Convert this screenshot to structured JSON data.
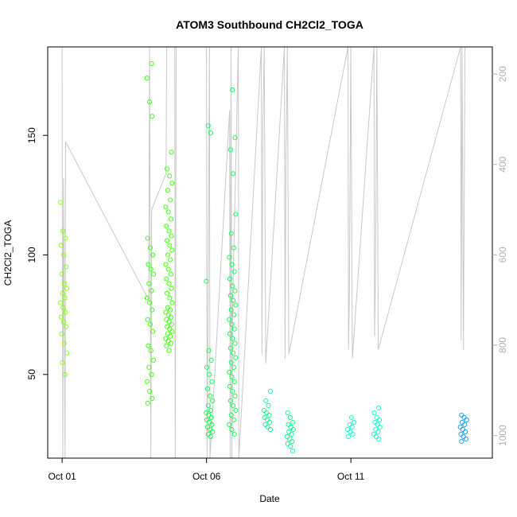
{
  "chart_data": {
    "type": "scatter",
    "title": "ATOM3 Southbound CH2Cl2_TOGA",
    "xlabel": "Date",
    "ylabel": "CH2Cl2_TOGA",
    "x_ticks": [
      {
        "label": "Oct 01",
        "value": 1
      },
      {
        "label": "Oct 06",
        "value": 6
      },
      {
        "label": "Oct 11",
        "value": 11
      }
    ],
    "xlim": [
      0.5,
      15.9
    ],
    "ylim": [
      15,
      187
    ],
    "y_ticks": [
      50,
      100,
      150
    ],
    "right_axis": {
      "label": "",
      "reversed": true,
      "ticks": [
        200,
        400,
        600,
        800,
        1000
      ],
      "lim": [
        140,
        1050
      ],
      "color": "#b0b0b0"
    },
    "series": [
      {
        "color": "#80ff00",
        "groups": [
          {
            "x": 1.05,
            "y": [
              122,
              110,
              107,
              104,
              100,
              95,
              92,
              88,
              86,
              84,
              82,
              80,
              78,
              76,
              74,
              72,
              70,
              67,
              63,
              59,
              55,
              50
            ]
          }
        ]
      },
      {
        "color": "#33ff00",
        "groups": [
          {
            "x": 4.05,
            "y": [
              180,
              174,
              164,
              158,
              107,
              103,
              100,
              96,
              94,
              92,
              88,
              85,
              82,
              80,
              77,
              73,
              71,
              68,
              62,
              60,
              56,
              53,
              50,
              47,
              43,
              40,
              38
            ]
          },
          {
            "x": 4.7,
            "y": [
              143,
              136,
              133,
              130,
              127,
              123,
              120,
              118,
              115,
              112,
              110,
              108,
              106,
              104,
              102,
              100,
              98,
              96,
              94,
              92,
              90,
              88,
              86,
              84,
              82,
              80,
              78,
              77,
              76,
              75,
              74,
              73,
              72,
              71,
              70,
              69,
              68,
              67,
              66,
              65,
              64,
              63,
              62,
              60
            ]
          }
        ]
      },
      {
        "color": "#00ff44",
        "groups": [
          {
            "x": 6.1,
            "y": [
              154,
              151,
              89,
              60,
              56,
              53,
              50,
              47,
              44,
              41,
              39,
              37,
              35,
              34,
              33,
              32,
              31,
              30,
              29,
              28,
              27,
              26,
              25,
              24
            ]
          },
          {
            "x": 6.9,
            "y": [
              169,
              149,
              144,
              134,
              117,
              109,
              103,
              99,
              96,
              93,
              90,
              87,
              85,
              83,
              81,
              79,
              77,
              75,
              73,
              71,
              69,
              67,
              65,
              63,
              61,
              59,
              57,
              55,
              53,
              51,
              49,
              47,
              45,
              43,
              41,
              39,
              37,
              35,
              33,
              31,
              29,
              27,
              25
            ]
          }
        ]
      },
      {
        "color": "#00ff88",
        "groups": [
          {
            "x": 8.1,
            "y": [
              43,
              39,
              37,
              35,
              34,
              33,
              32,
              31,
              30,
              29,
              28,
              27
            ]
          },
          {
            "x": 8.9,
            "y": [
              34,
              32,
              30,
              29,
              28,
              27,
              26,
              25,
              24,
              23,
              22,
              21,
              20,
              18
            ]
          }
        ]
      },
      {
        "color": "#00ffcc",
        "groups": [
          {
            "x": 11.0,
            "y": [
              32,
              30,
              29,
              28,
              27,
              26,
              25,
              24
            ]
          },
          {
            "x": 11.9,
            "y": [
              36,
              34,
              32,
              31,
              30,
              29,
              28,
              27,
              26,
              25,
              24,
              23
            ]
          }
        ]
      },
      {
        "color": "#0099ff",
        "groups": [
          {
            "x": 14.9,
            "y": [
              33,
              32,
              31,
              30,
              29,
              28,
              27,
              26,
              25,
              24,
              23,
              22
            ]
          }
        ]
      }
    ],
    "altitude_trace": {
      "color": "#c8c8c8",
      "note": "grey altitude profile plotted against the reversed right axis",
      "points": [
        [
          1.0,
          140
        ],
        [
          1.02,
          1050
        ],
        [
          1.05,
          430
        ],
        [
          1.1,
          1050
        ],
        [
          1.12,
          350
        ],
        [
          4.0,
          700
        ],
        [
          4.03,
          140
        ],
        [
          4.07,
          1050
        ],
        [
          4.1,
          500
        ],
        [
          4.6,
          420
        ],
        [
          4.62,
          140
        ],
        [
          4.9,
          140
        ],
        [
          4.92,
          1050
        ],
        [
          4.95,
          140
        ],
        [
          6.0,
          140
        ],
        [
          6.02,
          1050
        ],
        [
          6.05,
          750
        ],
        [
          6.1,
          140
        ],
        [
          6.12,
          1050
        ],
        [
          6.8,
          280
        ],
        [
          6.82,
          1050
        ],
        [
          6.85,
          140
        ],
        [
          6.88,
          1050
        ],
        [
          6.9,
          730
        ],
        [
          7.1,
          140
        ],
        [
          7.12,
          1050
        ],
        [
          7.9,
          140
        ],
        [
          7.92,
          820
        ],
        [
          7.95,
          330
        ],
        [
          8.0,
          140
        ],
        [
          8.05,
          840
        ],
        [
          8.7,
          140
        ],
        [
          8.72,
          830
        ],
        [
          8.75,
          400
        ],
        [
          8.8,
          140
        ],
        [
          8.85,
          820
        ],
        [
          10.9,
          140
        ],
        [
          10.92,
          810
        ],
        [
          10.95,
          690
        ],
        [
          11.0,
          140
        ],
        [
          11.05,
          830
        ],
        [
          11.8,
          140
        ],
        [
          11.82,
          780
        ],
        [
          11.85,
          650
        ],
        [
          11.9,
          140
        ],
        [
          11.95,
          810
        ],
        [
          14.8,
          140
        ],
        [
          14.82,
          790
        ],
        [
          14.85,
          140
        ],
        [
          14.9,
          810
        ],
        [
          14.95,
          140
        ]
      ]
    }
  }
}
